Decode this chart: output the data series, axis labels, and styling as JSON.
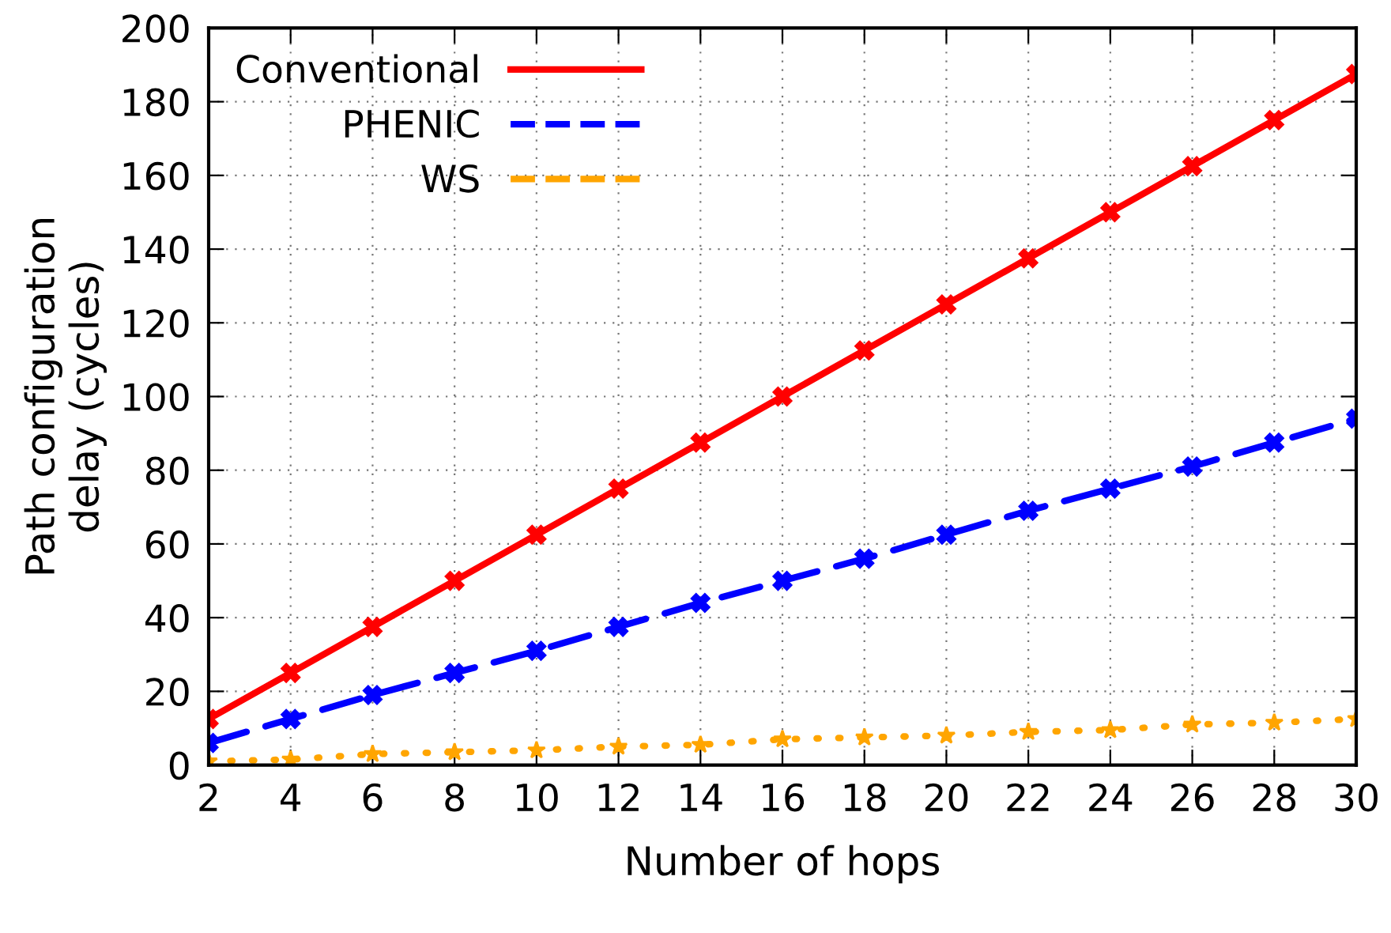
{
  "chart_data": {
    "type": "line",
    "xlabel": "Number of hops",
    "ylabel": "Path configuration\ndelay (cycles)",
    "x": [
      2,
      4,
      6,
      8,
      10,
      12,
      14,
      16,
      18,
      20,
      22,
      24,
      26,
      28,
      30
    ],
    "series": [
      {
        "name": "Conventional",
        "color": "#ff0000",
        "marker": "cross",
        "line_style": "solid",
        "values": [
          12.5,
          25,
          37.5,
          50,
          62.5,
          75,
          87.5,
          100,
          112.5,
          125,
          137.5,
          150,
          162.5,
          175,
          187.5
        ]
      },
      {
        "name": "PHENIC",
        "color": "#0000ff",
        "marker": "cross",
        "line_style": "dashed",
        "values": [
          6,
          12.5,
          19,
          25,
          31,
          37.5,
          44,
          50,
          56,
          62.5,
          69,
          75,
          81,
          87.5,
          94
        ]
      },
      {
        "name": "WS",
        "color": "#ffa500",
        "marker": "star",
        "line_style": "dotted",
        "values": [
          1,
          1.5,
          3,
          3.5,
          4,
          5,
          5.5,
          7,
          7.5,
          8,
          9,
          9.5,
          11,
          11.5,
          12.5
        ]
      }
    ],
    "xlim": [
      2,
      30
    ],
    "ylim": [
      0,
      200
    ],
    "xticks": [
      2,
      4,
      6,
      8,
      10,
      12,
      14,
      16,
      18,
      20,
      22,
      24,
      26,
      28,
      30
    ],
    "yticks": [
      0,
      20,
      40,
      60,
      80,
      100,
      120,
      140,
      160,
      180,
      200
    ],
    "grid": true,
    "legend": "top left"
  }
}
